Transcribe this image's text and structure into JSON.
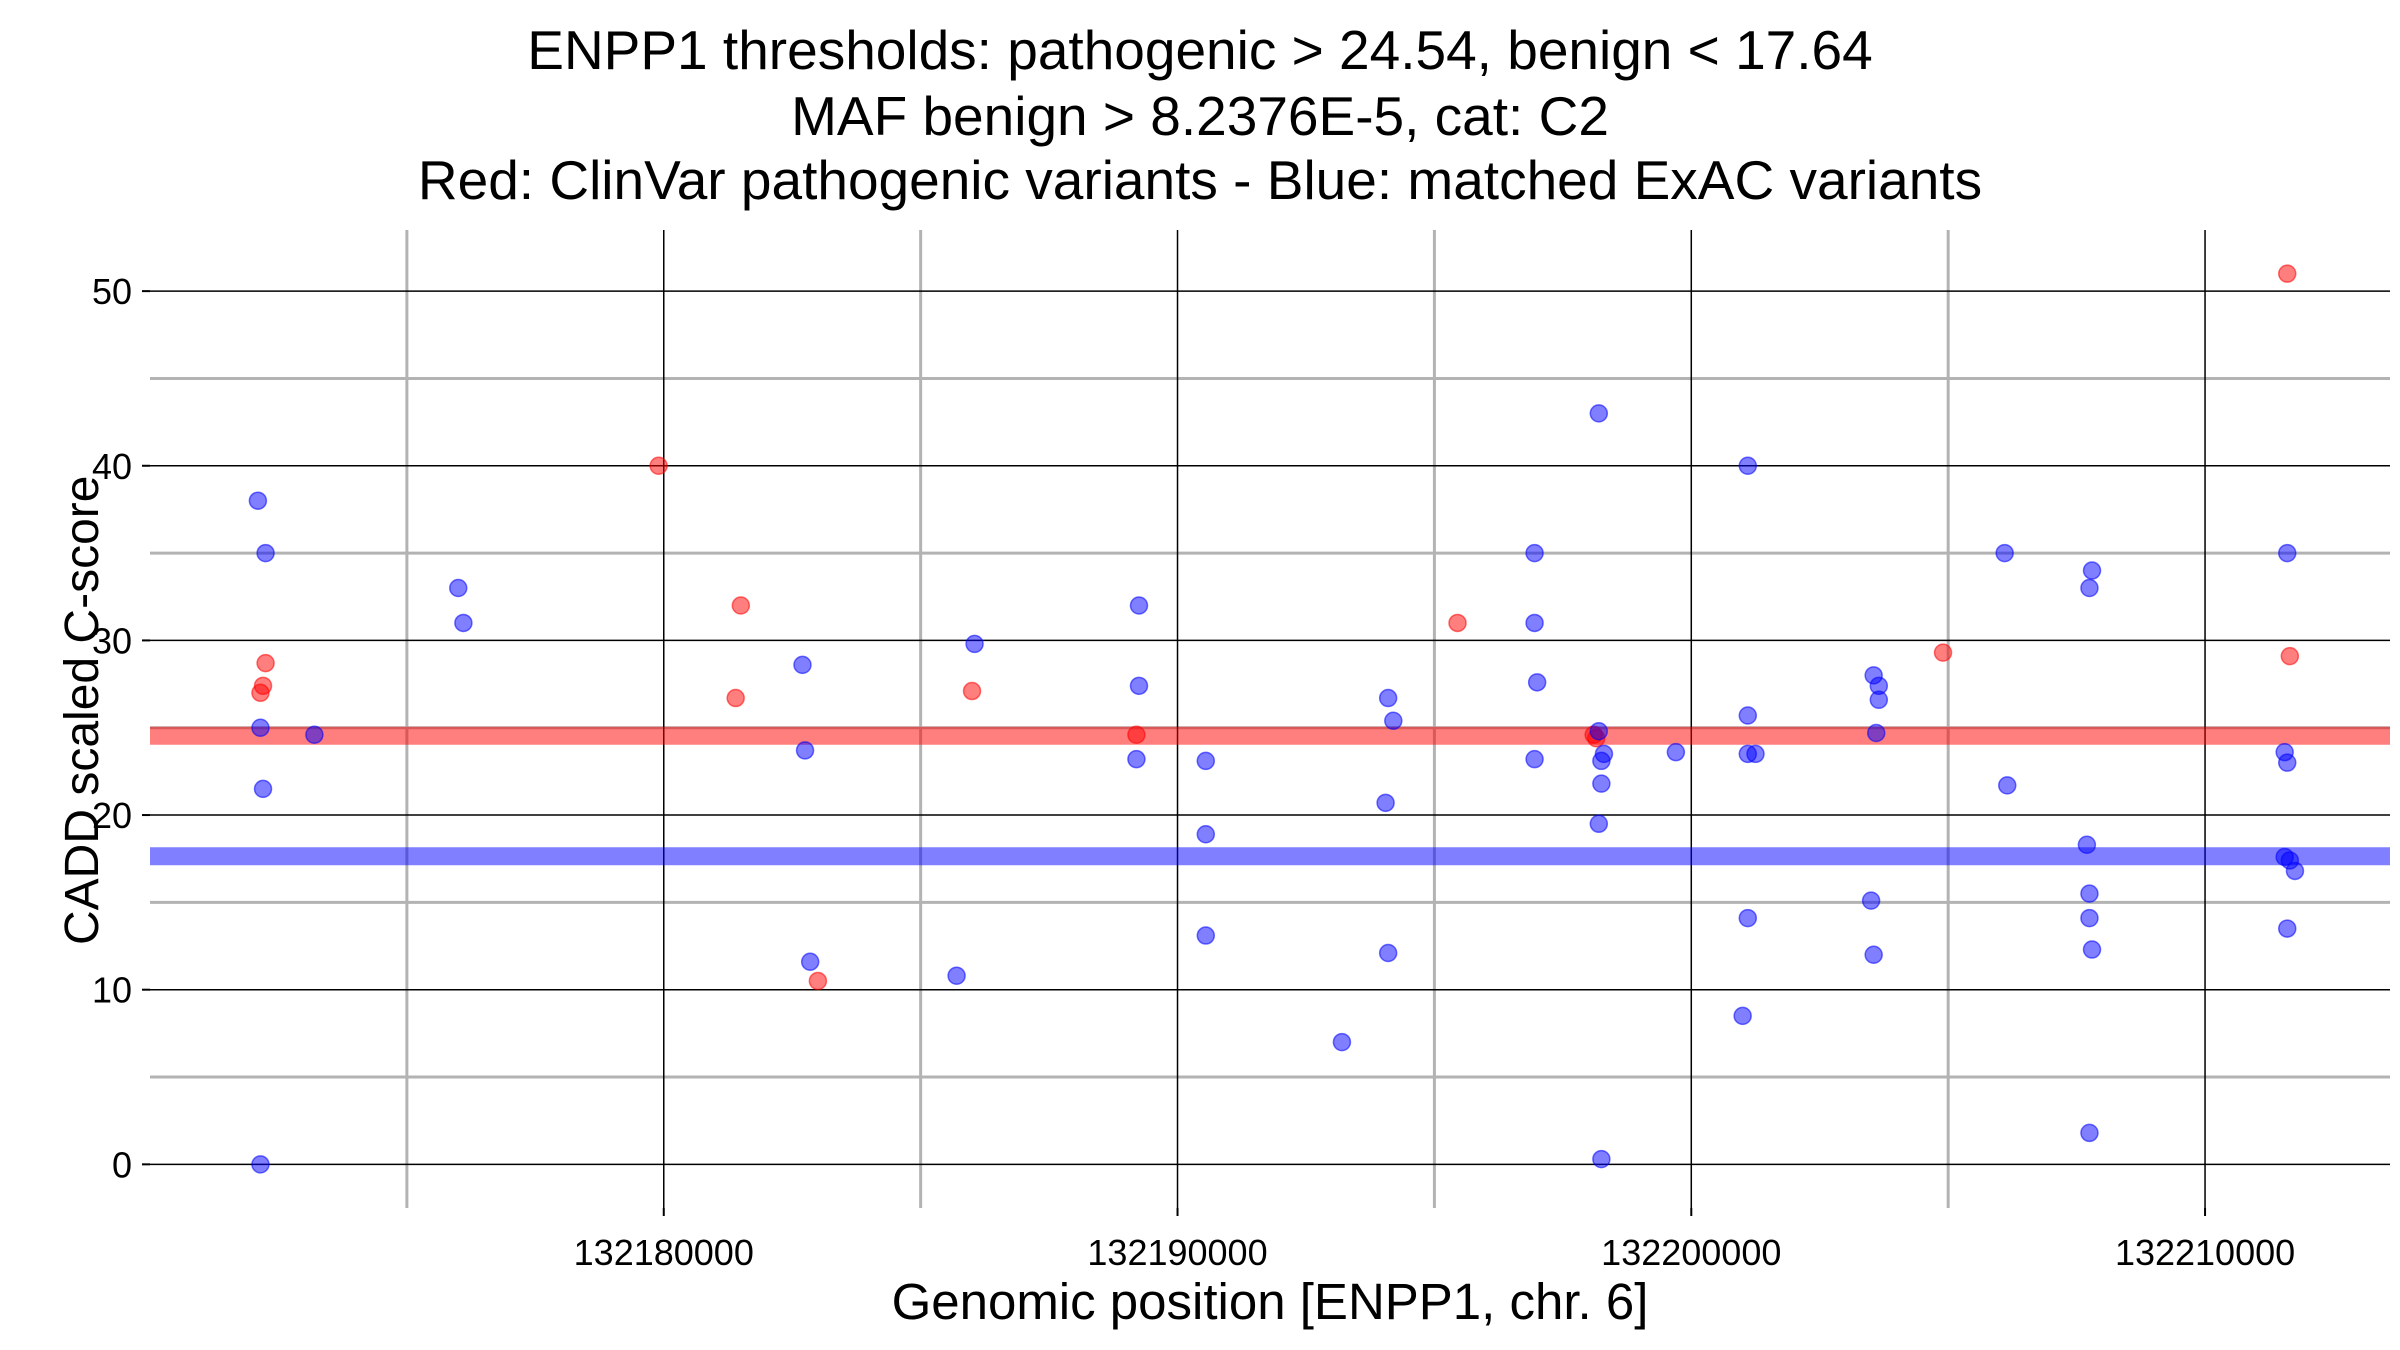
{
  "chart_data": {
    "type": "scatter",
    "title": [
      "ENPP1 thresholds: pathogenic > 24.54, benign < 17.64",
      "MAF benign > 8.2376E-5, cat: C2",
      "Red: ClinVar pathogenic variants - Blue: matched ExAC variants"
    ],
    "xlabel": "Genomic position [ENPP1, chr. 6]",
    "ylabel": "CADD scaled C-score",
    "xlim": [
      132170000,
      132213600
    ],
    "ylim": [
      -2.5,
      53.5
    ],
    "x_ticks": [
      132180000,
      132190000,
      132200000,
      132210000
    ],
    "x_tick_labels": [
      "132180000",
      "132190000",
      "132200000",
      "132210000"
    ],
    "x_minor_grid": [
      132175000,
      132185000,
      132195000,
      132205000
    ],
    "y_ticks": [
      0,
      10,
      20,
      30,
      40,
      50
    ],
    "y_tick_labels": [
      "0",
      "10",
      "20",
      "30",
      "40",
      "50"
    ],
    "y_minor_grid": [
      5,
      15,
      25,
      35,
      45
    ],
    "grid": true,
    "thresholds": [
      {
        "value": 24.54,
        "color": "#ff0000"
      },
      {
        "value": 17.64,
        "color": "#0000ff"
      }
    ],
    "series": [
      {
        "color": "#ff0000",
        "points": [
          {
            "x": 132172250,
            "y": 28.7
          },
          {
            "x": 132172200,
            "y": 27.4
          },
          {
            "x": 132172150,
            "y": 27.0
          },
          {
            "x": 132179900,
            "y": 40.0
          },
          {
            "x": 132181500,
            "y": 32.0
          },
          {
            "x": 132181400,
            "y": 26.7
          },
          {
            "x": 132183000,
            "y": 10.5
          },
          {
            "x": 132186000,
            "y": 27.1
          },
          {
            "x": 132189200,
            "y": 24.6
          },
          {
            "x": 132195450,
            "y": 31.0
          },
          {
            "x": 132198150,
            "y": 24.4
          },
          {
            "x": 132198100,
            "y": 24.6
          },
          {
            "x": 132204900,
            "y": 29.3
          },
          {
            "x": 132211600,
            "y": 51.0
          },
          {
            "x": 132211650,
            "y": 29.1
          }
        ]
      },
      {
        "color": "#0000ff",
        "points": [
          {
            "x": 132172100,
            "y": 38.0
          },
          {
            "x": 132172250,
            "y": 35.0
          },
          {
            "x": 132172150,
            "y": 25.0
          },
          {
            "x": 132172200,
            "y": 21.5
          },
          {
            "x": 132173200,
            "y": 24.6
          },
          {
            "x": 132172150,
            "y": 0.0
          },
          {
            "x": 132176000,
            "y": 33.0
          },
          {
            "x": 132176100,
            "y": 31.0
          },
          {
            "x": 132182700,
            "y": 28.6
          },
          {
            "x": 132182750,
            "y": 23.7
          },
          {
            "x": 132182850,
            "y": 11.6
          },
          {
            "x": 132185700,
            "y": 10.8
          },
          {
            "x": 132186050,
            "y": 29.8
          },
          {
            "x": 132189250,
            "y": 32.0
          },
          {
            "x": 132189250,
            "y": 27.4
          },
          {
            "x": 132189200,
            "y": 23.2
          },
          {
            "x": 132190550,
            "y": 23.1
          },
          {
            "x": 132190550,
            "y": 18.9
          },
          {
            "x": 132190550,
            "y": 13.1
          },
          {
            "x": 132193200,
            "y": 7.0
          },
          {
            "x": 132194100,
            "y": 26.7
          },
          {
            "x": 132194200,
            "y": 25.4
          },
          {
            "x": 132194050,
            "y": 20.7
          },
          {
            "x": 132194100,
            "y": 12.1
          },
          {
            "x": 132196950,
            "y": 35.0
          },
          {
            "x": 132196950,
            "y": 31.0
          },
          {
            "x": 132197000,
            "y": 27.6
          },
          {
            "x": 132196950,
            "y": 23.2
          },
          {
            "x": 132198200,
            "y": 43.0
          },
          {
            "x": 132198200,
            "y": 24.8
          },
          {
            "x": 132198300,
            "y": 23.5
          },
          {
            "x": 132198250,
            "y": 23.1
          },
          {
            "x": 132198250,
            "y": 21.8
          },
          {
            "x": 132198200,
            "y": 19.5
          },
          {
            "x": 132198250,
            "y": 0.3
          },
          {
            "x": 132199700,
            "y": 23.6
          },
          {
            "x": 132201100,
            "y": 40.0
          },
          {
            "x": 132201100,
            "y": 25.7
          },
          {
            "x": 132201100,
            "y": 23.5
          },
          {
            "x": 132201250,
            "y": 23.5
          },
          {
            "x": 132201100,
            "y": 14.1
          },
          {
            "x": 132201000,
            "y": 8.5
          },
          {
            "x": 132203550,
            "y": 28.0
          },
          {
            "x": 132203650,
            "y": 27.4
          },
          {
            "x": 132203650,
            "y": 26.6
          },
          {
            "x": 132203600,
            "y": 24.7
          },
          {
            "x": 132203500,
            "y": 15.1
          },
          {
            "x": 132203550,
            "y": 12.0
          },
          {
            "x": 132206100,
            "y": 35.0
          },
          {
            "x": 132206150,
            "y": 21.7
          },
          {
            "x": 132207800,
            "y": 34.0
          },
          {
            "x": 132207750,
            "y": 33.0
          },
          {
            "x": 132207700,
            "y": 18.3
          },
          {
            "x": 132207750,
            "y": 15.5
          },
          {
            "x": 132207750,
            "y": 14.1
          },
          {
            "x": 132207800,
            "y": 12.3
          },
          {
            "x": 132207750,
            "y": 1.8
          },
          {
            "x": 132211600,
            "y": 35.0
          },
          {
            "x": 132211550,
            "y": 23.6
          },
          {
            "x": 132211600,
            "y": 23.0
          },
          {
            "x": 132211550,
            "y": 17.6
          },
          {
            "x": 132211650,
            "y": 17.4
          },
          {
            "x": 132211750,
            "y": 16.8
          },
          {
            "x": 132211600,
            "y": 13.5
          }
        ]
      }
    ]
  }
}
